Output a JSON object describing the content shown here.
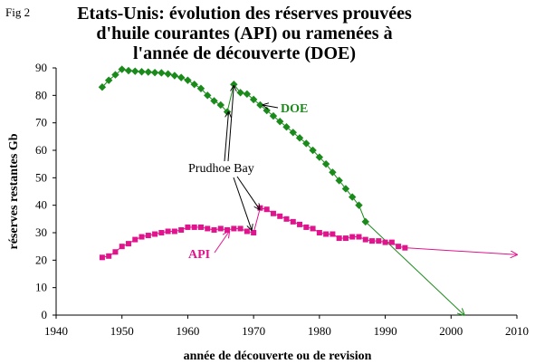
{
  "fig_label": "Fig 2",
  "title_lines": [
    "Etats-Unis: évolution des réserves prouvées",
    "d'huile courantes (API) ou ramenées à",
    "l'année de découverte (DOE)"
  ],
  "chart_data": {
    "type": "scatter",
    "xlabel": "année de découverte ou de revision",
    "ylabel": "réserves restantes Gb",
    "xlim": [
      1940,
      2010
    ],
    "ylim": [
      0,
      90
    ],
    "xticks": [
      1940,
      1950,
      1960,
      1970,
      1980,
      1990,
      2000,
      2010
    ],
    "yticks": [
      0,
      10,
      20,
      30,
      40,
      50,
      60,
      70,
      80,
      90
    ],
    "grid": "none",
    "series": [
      {
        "name": "DOE",
        "color": "#1a8a1a",
        "marker": "diamond",
        "x": [
          1947,
          1948,
          1949,
          1950,
          1951,
          1952,
          1953,
          1954,
          1955,
          1956,
          1957,
          1958,
          1959,
          1960,
          1961,
          1962,
          1963,
          1964,
          1965,
          1966,
          1967,
          1968,
          1969,
          1970,
          1971,
          1972,
          1973,
          1974,
          1975,
          1976,
          1977,
          1978,
          1979,
          1980,
          1981,
          1982,
          1983,
          1984,
          1985,
          1986,
          1987
        ],
        "y": [
          83,
          85.5,
          87.5,
          89.5,
          89,
          88.8,
          88.6,
          88.5,
          88.3,
          88.2,
          87.8,
          87.2,
          86.5,
          85.5,
          84,
          82.5,
          80,
          78,
          76.5,
          74,
          84,
          81,
          80.5,
          78.5,
          76.5,
          74.5,
          72.5,
          70.5,
          68.5,
          66.5,
          64.5,
          62.5,
          60,
          57.5,
          55,
          52,
          49,
          46,
          43,
          40,
          34
        ]
      },
      {
        "name": "API",
        "color": "#e0148c",
        "marker": "square",
        "x": [
          1947,
          1948,
          1949,
          1950,
          1951,
          1952,
          1953,
          1954,
          1955,
          1956,
          1957,
          1958,
          1959,
          1960,
          1961,
          1962,
          1963,
          1964,
          1965,
          1966,
          1967,
          1968,
          1969,
          1970,
          1971,
          1972,
          1973,
          1974,
          1975,
          1976,
          1977,
          1978,
          1979,
          1980,
          1981,
          1982,
          1983,
          1984,
          1985,
          1986,
          1987,
          1988,
          1989,
          1990,
          1991,
          1992,
          1993
        ],
        "y": [
          21,
          21.5,
          23,
          25,
          26,
          27.5,
          28.5,
          29,
          29.5,
          30,
          30.5,
          30.5,
          31,
          32,
          32,
          32,
          31.5,
          31,
          31.5,
          31,
          31.5,
          31.5,
          30.5,
          30,
          39,
          38.5,
          37,
          36,
          35,
          34,
          33,
          32,
          31.5,
          30,
          29.5,
          29.5,
          28,
          28,
          28.5,
          28.5,
          27.5,
          27,
          27,
          26.5,
          26.5,
          25,
          24.5
        ]
      }
    ],
    "extrapolations": [
      {
        "series": "DOE",
        "from": [
          1987,
          34
        ],
        "to": [
          2002,
          0
        ]
      },
      {
        "series": "API",
        "from": [
          1993,
          24.5
        ],
        "to": [
          2010,
          22
        ]
      }
    ],
    "annotations": [
      {
        "text": "DOE",
        "series": "DOE"
      },
      {
        "text": "API",
        "series": "API"
      },
      {
        "text": "Prudhoe Bay",
        "points_to": [
          [
            1966,
            75
          ],
          [
            1967,
            84
          ],
          [
            1970,
            30
          ],
          [
            1971,
            39
          ]
        ]
      }
    ]
  }
}
